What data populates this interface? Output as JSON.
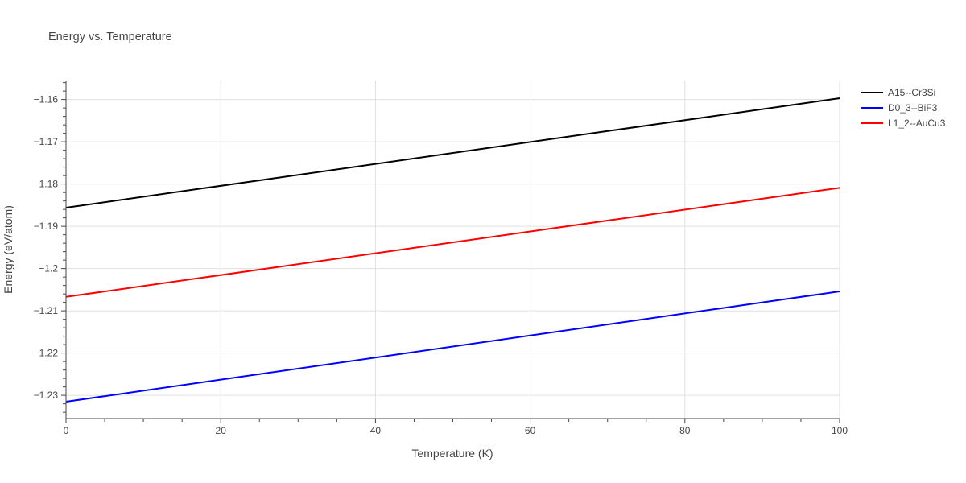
{
  "chart_data": {
    "type": "line",
    "title": "Energy vs. Temperature",
    "xlabel": "Temperature (K)",
    "ylabel": "Energy (eV/atom)",
    "xlim": [
      0,
      100
    ],
    "ylim": [
      -1.2355,
      -1.1555
    ],
    "x_ticks": [
      0,
      20,
      40,
      60,
      80,
      100
    ],
    "x_tick_labels": [
      "0",
      "20",
      "40",
      "60",
      "80",
      "100"
    ],
    "y_ticks": [
      -1.16,
      -1.17,
      -1.18,
      -1.19,
      -1.2,
      -1.21,
      -1.22,
      -1.23
    ],
    "y_tick_labels": [
      "−1.16",
      "−1.17",
      "−1.18",
      "−1.19",
      "−1.2",
      "−1.21",
      "−1.22",
      "−1.23"
    ],
    "grid": true,
    "legend_position": "top-right, outside plot",
    "series": [
      {
        "name": "A15--Cr3Si",
        "color": "#000000",
        "x": [
          0,
          100
        ],
        "y": [
          -1.1856,
          -1.1597
        ]
      },
      {
        "name": "D0_3--BiF3",
        "color": "#0000ff",
        "x": [
          0,
          100
        ],
        "y": [
          -1.2315,
          -1.2054
        ]
      },
      {
        "name": "L1_2--AuCu3",
        "color": "#ff0000",
        "x": [
          0,
          100
        ],
        "y": [
          -1.2067,
          -1.1809
        ]
      }
    ]
  }
}
